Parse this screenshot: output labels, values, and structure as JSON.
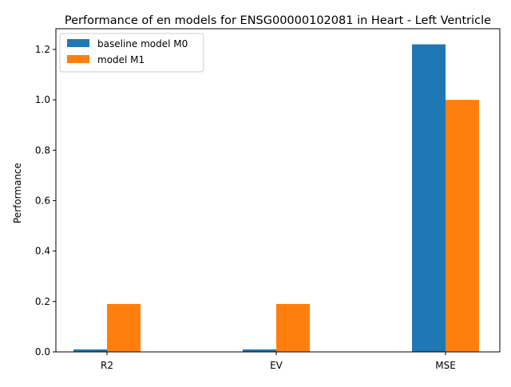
{
  "chart_data": {
    "type": "bar",
    "title": "Performance of en models for ENSG00000102081 in Heart - Left Ventricle",
    "xlabel": "",
    "ylabel": "Performance",
    "categories": [
      "R2",
      "EV",
      "MSE"
    ],
    "series": [
      {
        "name": "baseline model M0",
        "values": [
          0.01,
          0.01,
          1.22
        ],
        "color": "#1f77b4"
      },
      {
        "name": "model M1",
        "values": [
          0.19,
          0.19,
          1.0
        ],
        "color": "#ff7f0e"
      }
    ],
    "ylim": [
      0,
      1.282
    ],
    "yticks": [
      0.0,
      0.2,
      0.4,
      0.6,
      0.8,
      1.0,
      1.2
    ],
    "ytick_labels": [
      "0.0",
      "0.2",
      "0.4",
      "0.6",
      "0.8",
      "1.0",
      "1.2"
    ],
    "grid": false,
    "legend_position": "top-left"
  }
}
